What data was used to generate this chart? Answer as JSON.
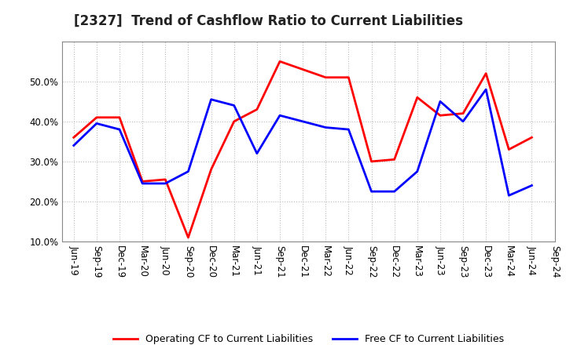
{
  "title": "[2327]  Trend of Cashflow Ratio to Current Liabilities",
  "x_labels": [
    "Jun-19",
    "Sep-19",
    "Dec-19",
    "Mar-20",
    "Jun-20",
    "Sep-20",
    "Dec-20",
    "Mar-21",
    "Jun-21",
    "Sep-21",
    "Dec-21",
    "Mar-22",
    "Jun-22",
    "Sep-22",
    "Dec-22",
    "Mar-23",
    "Jun-23",
    "Sep-23",
    "Dec-23",
    "Mar-24",
    "Jun-24",
    "Sep-24"
  ],
  "operating_cf": [
    36.0,
    41.0,
    41.0,
    25.0,
    25.5,
    11.0,
    28.0,
    40.0,
    43.0,
    55.0,
    53.0,
    51.0,
    51.0,
    30.0,
    30.5,
    46.0,
    41.5,
    42.0,
    52.0,
    33.0,
    36.0,
    null
  ],
  "free_cf": [
    34.0,
    39.5,
    38.0,
    24.5,
    24.5,
    27.5,
    45.5,
    44.0,
    32.0,
    41.5,
    40.0,
    38.5,
    38.0,
    22.5,
    22.5,
    27.5,
    45.0,
    40.0,
    48.0,
    21.5,
    24.0,
    null
  ],
  "ylim": [
    10.0,
    60.0
  ],
  "yticks": [
    10.0,
    20.0,
    30.0,
    40.0,
    50.0
  ],
  "operating_color": "#FF0000",
  "free_color": "#0000FF",
  "background_color": "#FFFFFF",
  "plot_bg_color": "#FFFFFF",
  "grid_color": "#AAAAAA",
  "legend_operating": "Operating CF to Current Liabilities",
  "legend_free": "Free CF to Current Liabilities",
  "title_fontsize": 12,
  "label_fontsize": 8.5,
  "linewidth": 2.0
}
